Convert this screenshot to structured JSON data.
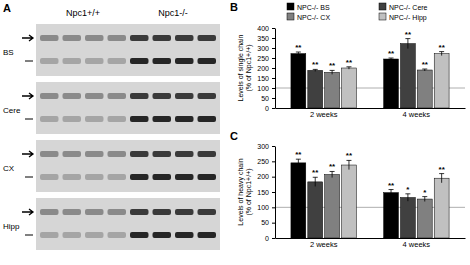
{
  "chart_data": [
    {
      "type": "blot",
      "title": "A",
      "groups": [
        "Npc1+/+",
        "Npc1-/-"
      ],
      "rows": [
        "BS",
        "Cere",
        "CX",
        "Hipp"
      ]
    },
    {
      "type": "bar",
      "title": "B",
      "ylabel": [
        "Levels of single chain",
        "(% of Npc1+/+)"
      ],
      "categories": [
        "2 weeks",
        "4 weeks"
      ],
      "series": [
        {
          "name": "NPC-/- BS",
          "color": "#000000",
          "values": [
            272,
            245
          ],
          "errors": [
            8,
            5
          ],
          "annotations": [
            "**",
            "**"
          ]
        },
        {
          "name": "NPC-/- Cere",
          "color": "#404040",
          "values": [
            188,
            322
          ],
          "errors": [
            5,
            25
          ],
          "annotations": [
            "**",
            "**"
          ]
        },
        {
          "name": "NPC-/- CX",
          "color": "#808080",
          "values": [
            178,
            190
          ],
          "errors": [
            10,
            5
          ],
          "annotations": [
            "**",
            "**"
          ]
        },
        {
          "name": "NPC-/- Hipp",
          "color": "#c0c0c0",
          "values": [
            200,
            272
          ],
          "errors": [
            6,
            10
          ],
          "annotations": [
            "**",
            "**"
          ]
        }
      ],
      "reference": 100,
      "ylim": [
        0,
        400
      ],
      "yticks": [
        0,
        50,
        100,
        150,
        200,
        250,
        300,
        350,
        400
      ],
      "legend": "top"
    },
    {
      "type": "bar",
      "title": "C",
      "ylabel": [
        "Levels of heavy chain",
        "(% of Npc1+/+)"
      ],
      "categories": [
        "2 weeks",
        "4 weeks"
      ],
      "series": [
        {
          "color": "#000000",
          "values": [
            245,
            148
          ],
          "errors": [
            12,
            10
          ],
          "annotations": [
            "**",
            "**"
          ]
        },
        {
          "color": "#404040",
          "values": [
            183,
            132
          ],
          "errors": [
            15,
            12
          ],
          "annotations": [
            "**",
            "*"
          ]
        },
        {
          "color": "#808080",
          "values": [
            207,
            127
          ],
          "errors": [
            10,
            8
          ],
          "annotations": [
            "**",
            "*"
          ]
        },
        {
          "color": "#c0c0c0",
          "values": [
            238,
            195
          ],
          "errors": [
            15,
            15
          ],
          "annotations": [
            "**",
            "**"
          ]
        }
      ],
      "reference": 100,
      "ylim": [
        0,
        300
      ],
      "yticks": [
        0,
        50,
        100,
        150,
        200,
        250,
        300
      ]
    }
  ]
}
